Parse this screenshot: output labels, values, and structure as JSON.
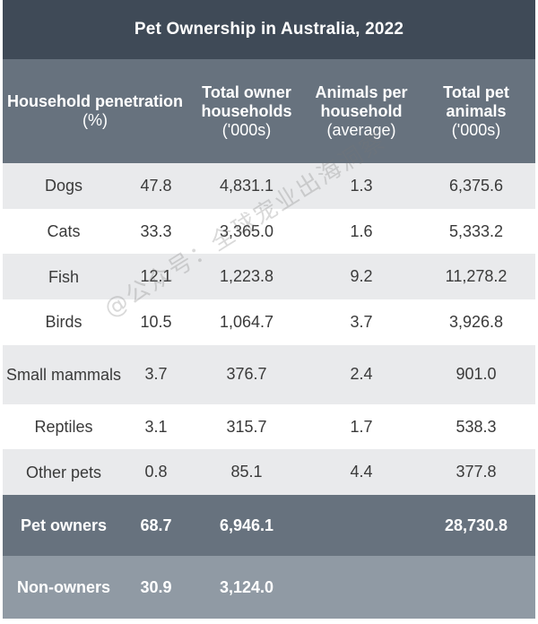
{
  "title": "Pet Ownership in Australia, 2022",
  "headers": {
    "penetration": {
      "bold": "Household penetration",
      "sub": "(%)"
    },
    "households": {
      "bold": "Total owner households",
      "sub": "('000s)"
    },
    "per_household": {
      "bold": "Animals per household",
      "sub": "(average)"
    },
    "total_animals": {
      "bold": "Total pet animals",
      "sub": "('000s)"
    }
  },
  "rows": [
    {
      "label": "Dogs",
      "penetration": "47.8",
      "households": "4,831.1",
      "per_household": "1.3",
      "total_animals": "6,375.6"
    },
    {
      "label": "Cats",
      "penetration": "33.3",
      "households": "3,365.0",
      "per_household": "1.6",
      "total_animals": "5,333.2"
    },
    {
      "label": "Fish",
      "penetration": "12.1",
      "households": "1,223.8",
      "per_household": "9.2",
      "total_animals": "11,278.2"
    },
    {
      "label": "Birds",
      "penetration": "10.5",
      "households": "1,064.7",
      "per_household": "3.7",
      "total_animals": "3,926.8"
    },
    {
      "label": "Small mammals",
      "penetration": "3.7",
      "households": "376.7",
      "per_household": "2.4",
      "total_animals": "901.0"
    },
    {
      "label": "Reptiles",
      "penetration": "3.1",
      "households": "315.7",
      "per_household": "1.7",
      "total_animals": "538.3"
    },
    {
      "label": "Other pets",
      "penetration": "0.8",
      "households": "85.1",
      "per_household": "4.4",
      "total_animals": "377.8"
    }
  ],
  "owners": {
    "label": "Pet owners",
    "penetration": "68.7",
    "households": "6,946.1",
    "per_household": "",
    "total_animals": "28,730.8"
  },
  "non_owners": {
    "label": "Non-owners",
    "penetration": "30.9",
    "households": "3,124.0",
    "per_household": "",
    "total_animals": ""
  },
  "watermark": "@公众号：全球宠业出海洞察"
}
